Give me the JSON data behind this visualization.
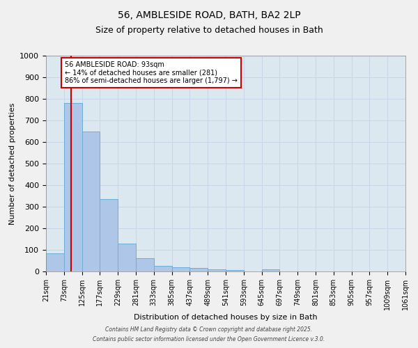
{
  "title_line1": "56, AMBLESIDE ROAD, BATH, BA2 2LP",
  "title_line2": "Size of property relative to detached houses in Bath",
  "xlabel": "Distribution of detached houses by size in Bath",
  "ylabel": "Number of detached properties",
  "bar_left_edges": [
    21,
    73,
    125,
    177,
    229,
    281,
    333,
    385,
    437,
    489,
    541,
    593,
    645,
    697,
    749,
    801,
    853,
    905,
    957,
    1009
  ],
  "bar_heights": [
    85,
    780,
    650,
    335,
    130,
    60,
    25,
    18,
    17,
    10,
    8,
    0,
    10,
    0,
    0,
    0,
    0,
    0,
    0,
    0
  ],
  "bin_width": 52,
  "bar_color": "#aec6e8",
  "bar_edge_color": "#6baed6",
  "ylim": [
    0,
    1000
  ],
  "xlim": [
    21,
    1061
  ],
  "property_size": 93,
  "red_line_color": "#cc0000",
  "annotation_text": "56 AMBLESIDE ROAD: 93sqm\n← 14% of detached houses are smaller (281)\n86% of semi-detached houses are larger (1,797) →",
  "annotation_box_color": "#cc0000",
  "grid_color": "#c8d4e8",
  "background_color": "#dce8f0",
  "tick_labels": [
    "21sqm",
    "73sqm",
    "125sqm",
    "177sqm",
    "229sqm",
    "281sqm",
    "333sqm",
    "385sqm",
    "437sqm",
    "489sqm",
    "541sqm",
    "593sqm",
    "645sqm",
    "697sqm",
    "749sqm",
    "801sqm",
    "853sqm",
    "905sqm",
    "957sqm",
    "1009sqm",
    "1061sqm"
  ],
  "tick_positions": [
    21,
    73,
    125,
    177,
    229,
    281,
    333,
    385,
    437,
    489,
    541,
    593,
    645,
    697,
    749,
    801,
    853,
    905,
    957,
    1009,
    1061
  ],
  "footer_line1": "Contains HM Land Registry data © Crown copyright and database right 2025.",
  "footer_line2": "Contains public sector information licensed under the Open Government Licence v.3.0."
}
